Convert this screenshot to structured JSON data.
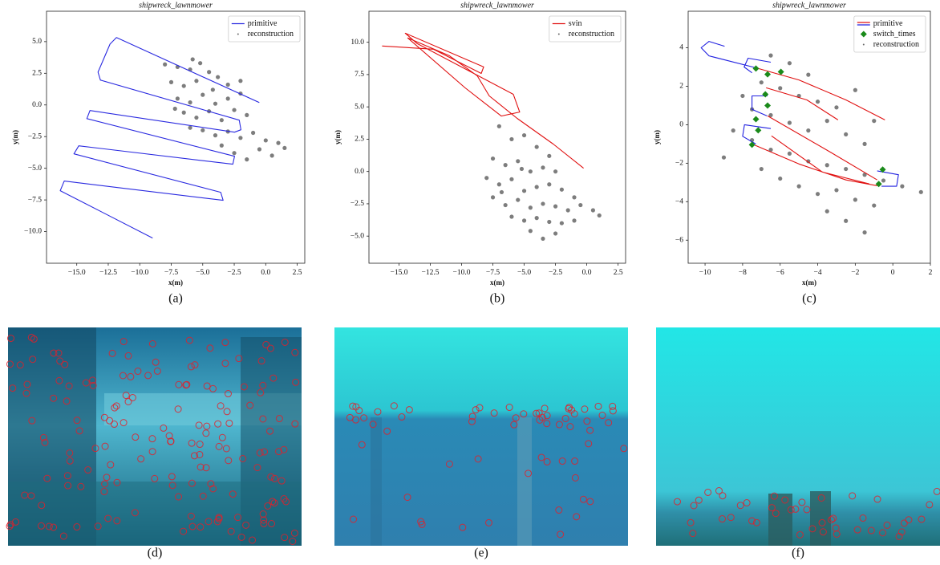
{
  "chart_data": [
    {
      "type": "line",
      "title": "shipwreck_lawnmower",
      "xlabel": "x(m)",
      "ylabel": "y(m)",
      "caption": "(a)",
      "xlim": [
        -17.4,
        3.1
      ],
      "ylim": [
        -12.5,
        7.4
      ],
      "xticks": [
        {
          "value": -15,
          "label": "−15.0"
        },
        {
          "value": -12.5,
          "label": "−12.5"
        },
        {
          "value": -10,
          "label": "−10.0"
        },
        {
          "value": -7.5,
          "label": "−7.5"
        },
        {
          "value": -5,
          "label": "−5.0"
        },
        {
          "value": -2.5,
          "label": "−2.5"
        },
        {
          "value": 0,
          "label": "0.0"
        },
        2.5
      ],
      "yticks": [
        {
          "value": -10,
          "label": "−10.0"
        },
        {
          "value": -7.5,
          "label": "−7.5"
        },
        {
          "value": -5,
          "label": "−5.0"
        },
        {
          "value": -2.5,
          "label": "−2.5"
        },
        {
          "value": 0,
          "label": "0.0"
        },
        2.5,
        {
          "value": 5,
          "label": "5.0"
        }
      ],
      "legend": "upper right",
      "series": [
        {
          "name": "primitive",
          "color": "#2a2ae0",
          "x": [
            -0.51,
            -11.85,
            -12.36,
            -13.31,
            -13.12,
            -2.1,
            -1.97,
            -2.48,
            -13.95,
            -14.2,
            -2.48,
            -2.61,
            -14.84,
            -15.22,
            -3.57,
            -3.38,
            -15.99,
            -16.31,
            -8.98
          ],
          "y": [
            0.19,
            5.32,
            4.81,
            2.59,
            1.96,
            -1.2,
            -1.96,
            -2.15,
            -0.44,
            -1.08,
            -4.05,
            -4.68,
            -3.23,
            -3.86,
            -6.9,
            -7.53,
            -6.01,
            -6.77,
            -10.51
          ]
        },
        {
          "name": "reconstruction",
          "type": "scatter",
          "color": "#666666",
          "x": [
            -8,
            -7,
            -6,
            -5.2,
            -4.5,
            -7.5,
            -6.5,
            -5.5,
            -4.2,
            -3,
            -7,
            -6,
            -5,
            -4,
            -3,
            -2,
            -6.5,
            -5.5,
            -4.5,
            -3.5,
            -2.5,
            -1.5,
            -5,
            -4,
            -3,
            -2,
            -1,
            0,
            1,
            1.5,
            -0.5,
            -2.5,
            -3.5,
            -1.5,
            0.5,
            -6,
            -7.2,
            -2,
            -3.8,
            -5.8
          ],
          "y": [
            3.2,
            3,
            2.8,
            3.3,
            2.6,
            1.8,
            1.5,
            1.9,
            1.2,
            1.6,
            0.5,
            0.2,
            0.8,
            0.1,
            0.5,
            0.9,
            -0.6,
            -1,
            -0.5,
            -1.2,
            -0.4,
            -0.8,
            -2,
            -2.4,
            -2.1,
            -2.6,
            -2.2,
            -2.8,
            -3,
            -3.4,
            -3.5,
            -3.8,
            -3.2,
            -4.3,
            -4,
            -1.8,
            -0.3,
            1.9,
            2.2,
            3.6
          ]
        }
      ]
    },
    {
      "type": "line",
      "title": "shipwreck_lawnmower",
      "xlabel": "x(m)",
      "ylabel": "y(m)",
      "caption": "(b)",
      "xlim": [
        -17.4,
        3.1
      ],
      "ylim": [
        -7.1,
        12.4
      ],
      "xticks": [
        {
          "value": -15,
          "label": "−15.0"
        },
        {
          "value": -12.5,
          "label": "−12.5"
        },
        {
          "value": -10,
          "label": "−10.0"
        },
        {
          "value": -7.5,
          "label": "−7.5"
        },
        {
          "value": -5,
          "label": "−5.0"
        },
        {
          "value": -2.5,
          "label": "−2.5"
        },
        {
          "value": 0,
          "label": "0.0"
        },
        2.5
      ],
      "yticks": [
        {
          "value": -5,
          "label": "−5.0"
        },
        {
          "value": -2.5,
          "label": "−2.5"
        },
        {
          "value": 0,
          "label": "0.0"
        },
        2.5,
        {
          "value": 5,
          "label": "5.0"
        },
        7.5,
        {
          "value": 10,
          "label": "10.0"
        }
      ],
      "legend": "upper right",
      "series": [
        {
          "name": "svin",
          "color": "#e01010",
          "x": [
            -16.35,
            -12.26,
            -8.43,
            -8.24,
            -14.5,
            -13.54,
            -5.87,
            -5.36,
            -6.83,
            -9.71,
            -14.3,
            -10.98,
            -8.75,
            -7.79,
            -5.56,
            -2.68,
            -0.26
          ],
          "y": [
            9.71,
            9.46,
            7.59,
            8.09,
            10.7,
            9.89,
            5.97,
            4.6,
            4.29,
            6.47,
            10.33,
            8.96,
            7.41,
            5.85,
            4.11,
            2.12,
            0.25
          ]
        },
        {
          "name": "reconstruction",
          "type": "scatter",
          "color": "#666666",
          "x": [
            -7,
            -6,
            -5,
            -4,
            -3,
            -7.5,
            -6.5,
            -5.5,
            -4.5,
            -3.5,
            -2.5,
            -8,
            -7,
            -6,
            -5,
            -3,
            -2,
            -1,
            -7.5,
            -6.5,
            -5.5,
            -4.5,
            -3.5,
            -2.5,
            -1.5,
            -0.5,
            0.5,
            1,
            -6,
            -5,
            -4,
            -3,
            -2,
            -1,
            -4.5,
            -3.5,
            -2.5,
            -6.8,
            -4,
            -5.2
          ],
          "y": [
            3.5,
            2.5,
            2.8,
            1.9,
            1.2,
            1,
            0.5,
            0.8,
            0,
            0.3,
            0,
            -0.5,
            -1,
            -0.6,
            -1.5,
            -1,
            -1.4,
            -2,
            -2,
            -2.6,
            -2.2,
            -2.8,
            -2.5,
            -2.7,
            -3,
            -2.6,
            -3,
            -3.4,
            -3.5,
            -3.8,
            -3.6,
            -3.9,
            -4,
            -3.8,
            -4.6,
            -5.2,
            -4.8,
            -1.6,
            -1.2,
            0.2
          ]
        }
      ]
    },
    {
      "type": "line",
      "title": "shipwreck_lawnmower",
      "xlabel": "x(m)",
      "ylabel": "y(m)",
      "caption": "(c)",
      "xlim": [
        -10.9,
        2.0
      ],
      "ylim": [
        -7.2,
        5.9
      ],
      "xticks": [
        {
          "value": -10,
          "label": "−10"
        },
        {
          "value": -8,
          "label": "−8"
        },
        {
          "value": -6,
          "label": "−6"
        },
        {
          "value": -4,
          "label": "−4"
        },
        {
          "value": -2,
          "label": "−2"
        },
        0,
        2
      ],
      "yticks": [
        {
          "value": -6,
          "label": "−6"
        },
        {
          "value": -4,
          "label": "−4"
        },
        {
          "value": -2,
          "label": "−2"
        },
        0,
        2,
        4
      ],
      "legend": "upper right",
      "series": [
        {
          "name": "primitive",
          "color": "#e01010",
          "x": [
            -7.29,
            -5.0,
            -2.5,
            -0.42,
            null,
            -6.75,
            -4.58,
            -2.92,
            null,
            -6.67,
            -3.33,
            -0.83,
            null,
            -7.5,
            -5.0,
            -2.5,
            -0.83,
            null,
            -6.46,
            -3.75,
            -1.25
          ],
          "y": [
            2.96,
            2.33,
            1.29,
            0.25,
            null,
            1.92,
            1.29,
            0.25,
            null,
            0.46,
            -1.42,
            -2.87,
            null,
            -1.0,
            -2.04,
            -2.87,
            -3.17,
            null,
            -0.58,
            -2.46,
            -3.08
          ]
        },
        {
          "color": "#2020e0",
          "x": [
            -7.29,
            -9.79,
            -10.21,
            -9.79,
            -8.96,
            null,
            -6.5,
            -7.71,
            -7.92,
            -7.5,
            null,
            -6.67,
            -7.5,
            -7.5,
            -6.7,
            null,
            -6.5,
            -7.9,
            -8.0,
            -7.3,
            null,
            -0.83,
            0.3,
            0.2,
            -0.6
          ],
          "y": [
            2.96,
            3.58,
            4.0,
            4.33,
            4.08,
            null,
            3.25,
            3.46,
            3.0,
            2.7,
            null,
            1.5,
            1.5,
            0.8,
            0.46,
            null,
            -0.2,
            0.0,
            -0.6,
            -1.0,
            null,
            -2.4,
            -2.6,
            -3.2,
            -3.2
          ]
        },
        {
          "name": "switch_times",
          "type": "scatter",
          "marker": "D",
          "color": "#1a8a1a",
          "x": [
            -7.29,
            -6.67,
            -5.96,
            -6.79,
            -6.67,
            -7.29,
            -7.17,
            -7.5,
            -0.54,
            -0.75
          ],
          "y": [
            2.92,
            2.62,
            2.75,
            1.58,
            1.0,
            0.29,
            -0.29,
            -1.04,
            -2.33,
            -3.08
          ]
        },
        {
          "name": "reconstruction",
          "type": "scatter",
          "color": "#666666",
          "x": [
            -6.5,
            -5.5,
            -4.5,
            -7,
            -6,
            -5,
            -4,
            -3,
            -8,
            -7.5,
            -6.5,
            -5.5,
            -4.5,
            -3.5,
            -2.5,
            -1.5,
            -8.5,
            -7.5,
            -6.5,
            -5.5,
            -4.5,
            -3.5,
            -2.5,
            -1.5,
            -0.5,
            0.5,
            1.5,
            -7,
            -6,
            -5,
            -4,
            -3,
            -2,
            -1,
            -3.5,
            -2.5,
            -1.5,
            -9,
            -2,
            -1
          ],
          "y": [
            3.6,
            3.2,
            2.6,
            2.2,
            1.9,
            1.5,
            1.2,
            0.9,
            1.5,
            0.8,
            0.5,
            0.1,
            -0.3,
            0.2,
            -0.5,
            -1,
            -0.3,
            -0.8,
            -1.3,
            -1.5,
            -1.9,
            -2.1,
            -2.3,
            -2.6,
            -2.9,
            -3.2,
            -3.5,
            -2.3,
            -2.8,
            -3.2,
            -3.6,
            -3.4,
            -3.9,
            -4.2,
            -4.5,
            -5,
            -5.6,
            -1.7,
            1.8,
            0.2
          ]
        }
      ]
    }
  ],
  "images": [
    {
      "caption": "(d)"
    },
    {
      "caption": "(e)"
    },
    {
      "caption": "(f)"
    }
  ]
}
